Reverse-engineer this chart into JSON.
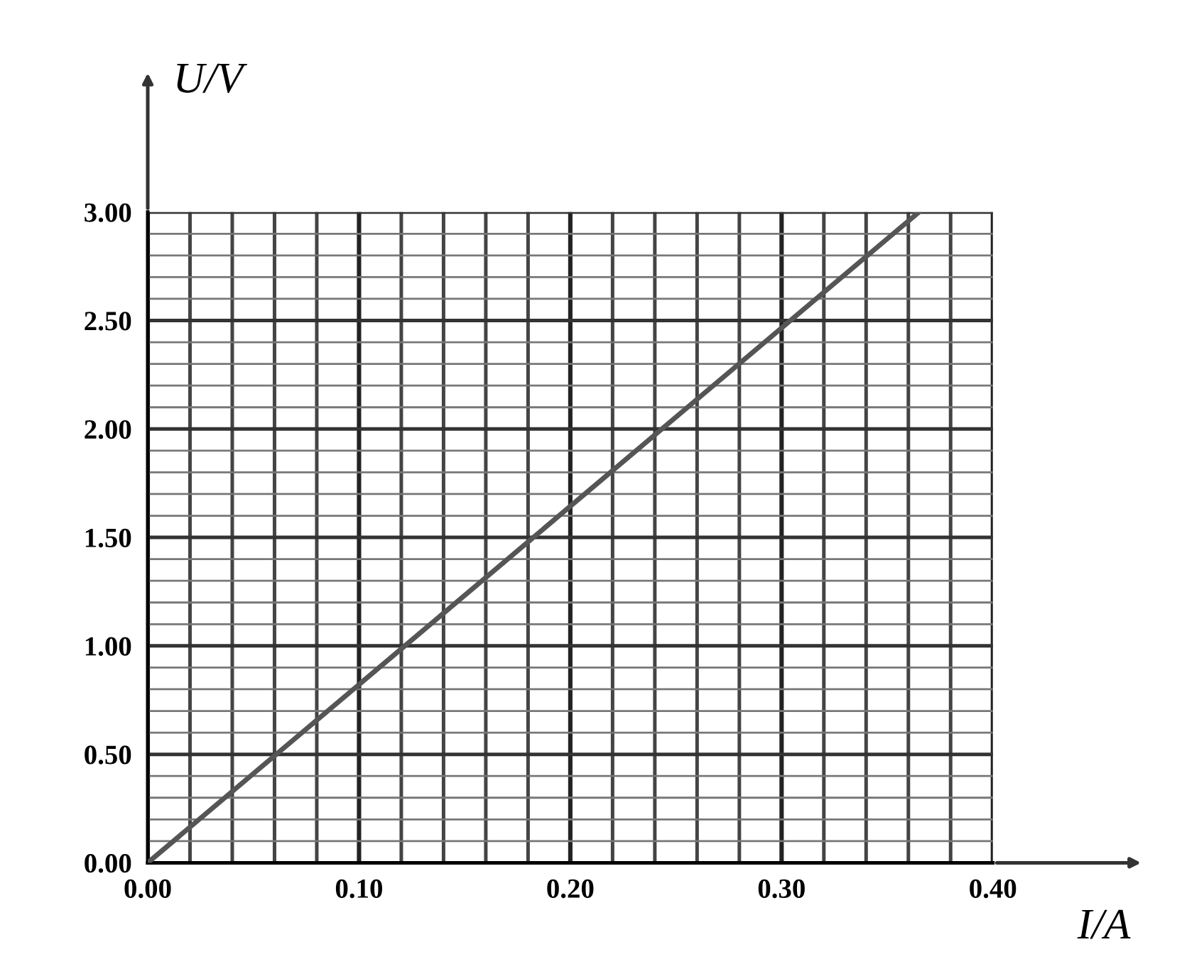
{
  "chart_data": {
    "type": "line",
    "xlabel": "I/A",
    "ylabel": "U/V",
    "x": [
      0,
      0.365
    ],
    "series": [
      {
        "color": "#555555",
        "values": [
          0,
          3.0
        ]
      }
    ],
    "xlim": [
      0,
      0.4
    ],
    "ylim": [
      0,
      3.0
    ],
    "xticks": [
      {
        "value": 0,
        "label": "0.00"
      },
      {
        "value": 0.1,
        "label": "0.10"
      },
      {
        "value": 0.2,
        "label": "0.20"
      },
      {
        "value": 0.3,
        "label": "0.30"
      },
      {
        "value": 0.4,
        "label": "0.40"
      }
    ],
    "yticks": [
      {
        "value": 0,
        "label": "0.00"
      },
      {
        "value": 0.5,
        "label": "0.50"
      },
      {
        "value": 1.0,
        "label": "1.00"
      },
      {
        "value": 1.5,
        "label": "1.50"
      },
      {
        "value": 2.0,
        "label": "2.00"
      },
      {
        "value": 2.5,
        "label": "2.50"
      },
      {
        "value": 3.0,
        "label": "3.00"
      }
    ],
    "grid": true,
    "line_style": "solid",
    "marker": "none"
  }
}
